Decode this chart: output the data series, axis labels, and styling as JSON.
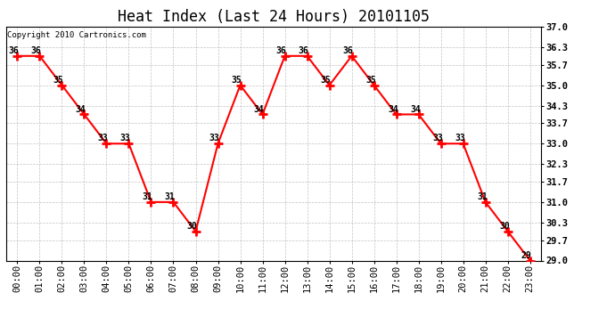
{
  "title": "Heat Index (Last 24 Hours) 20101105",
  "copyright": "Copyright 2010 Cartronics.com",
  "hours": [
    "00:00",
    "01:00",
    "02:00",
    "03:00",
    "04:00",
    "05:00",
    "06:00",
    "07:00",
    "08:00",
    "09:00",
    "10:00",
    "11:00",
    "12:00",
    "13:00",
    "14:00",
    "15:00",
    "16:00",
    "17:00",
    "18:00",
    "19:00",
    "20:00",
    "21:00",
    "22:00",
    "23:00"
  ],
  "values": [
    36,
    36,
    35,
    34,
    33,
    33,
    31,
    31,
    30,
    33,
    35,
    34,
    36,
    36,
    35,
    36,
    35,
    34,
    34,
    33,
    33,
    31,
    30,
    29
  ],
  "ylim_min": 29.0,
  "ylim_max": 37.0,
  "yticks": [
    29.0,
    29.7,
    30.3,
    31.0,
    31.7,
    32.3,
    33.0,
    33.7,
    34.3,
    35.0,
    35.7,
    36.3,
    37.0
  ],
  "line_color": "#FF0000",
  "marker_color": "#FF0000",
  "bg_color": "#FFFFFF",
  "plot_bg_color": "#FFFFFF",
  "grid_color": "#BBBBBB",
  "title_fontsize": 12,
  "label_fontsize": 7.5,
  "copyright_fontsize": 6.5,
  "annot_fontsize": 7
}
